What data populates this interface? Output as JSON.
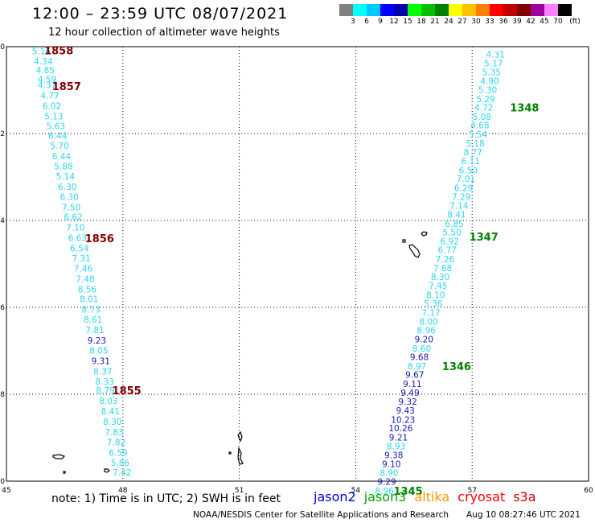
{
  "header": {
    "title": "12:00 – 23:59 UTC 08/07/2021",
    "subtitle": "12 hour collection of altimeter wave heights"
  },
  "legend": {
    "unit_label": "(ft)",
    "ticks": [
      "3",
      "6",
      "9",
      "12",
      "15",
      "18",
      "21",
      "24",
      "27",
      "30",
      "33",
      "36",
      "39",
      "42",
      "45",
      "70"
    ],
    "colors": [
      "#808080",
      "#00ffff",
      "#00c8ff",
      "#0000ff",
      "#0000aa",
      "#00ff00",
      "#00c000",
      "#008000",
      "#ffff00",
      "#ffc000",
      "#ff8000",
      "#ff0000",
      "#c00000",
      "#800000",
      "#a000a0",
      "#ff80ff",
      "#000000"
    ]
  },
  "map": {
    "lon_ticks": [
      "45",
      "48",
      "51",
      "54",
      "57",
      "60"
    ],
    "lat_ticks": [
      "0",
      "−2",
      "−4",
      "−6",
      "−8",
      "−10"
    ],
    "lon_range": [
      45,
      60
    ],
    "lat_range": [
      0,
      -10
    ],
    "grid": "dotted"
  },
  "tracks": [
    {
      "satellite": "cryosat",
      "color": "#2ad6f0",
      "dark_color": "#1a1ab0",
      "time_color": "#800000",
      "points": [
        {
          "lon": 45.9,
          "lat": -0.1,
          "value": "5.16",
          "dark": false
        },
        {
          "lon": 45.95,
          "lat": -0.33,
          "value": "4.34",
          "dark": false
        },
        {
          "lon": 46.0,
          "lat": -0.54,
          "value": "4.85",
          "dark": false
        },
        {
          "lon": 46.05,
          "lat": -0.75,
          "value": "4.59",
          "dark": false
        },
        {
          "lon": 46.05,
          "lat": -0.88,
          "value": "4.37",
          "dark": false
        },
        {
          "lon": 46.12,
          "lat": -1.12,
          "value": "4.77",
          "dark": false
        },
        {
          "lon": 46.17,
          "lat": -1.36,
          "value": "6.02",
          "dark": false
        },
        {
          "lon": 46.22,
          "lat": -1.6,
          "value": "5.13",
          "dark": false
        },
        {
          "lon": 46.27,
          "lat": -1.82,
          "value": "5.63",
          "dark": false
        },
        {
          "lon": 46.32,
          "lat": -2.05,
          "value": "6.44",
          "dark": false
        },
        {
          "lon": 46.37,
          "lat": -2.28,
          "value": "5.70",
          "dark": false
        },
        {
          "lon": 46.42,
          "lat": -2.52,
          "value": "6.44",
          "dark": false
        },
        {
          "lon": 46.47,
          "lat": -2.75,
          "value": "5.88",
          "dark": false
        },
        {
          "lon": 46.52,
          "lat": -2.98,
          "value": "5.14",
          "dark": false
        },
        {
          "lon": 46.57,
          "lat": -3.22,
          "value": "6.30",
          "dark": false
        },
        {
          "lon": 46.62,
          "lat": -3.45,
          "value": "6.30",
          "dark": false
        },
        {
          "lon": 46.67,
          "lat": -3.69,
          "value": "7.50",
          "dark": false
        },
        {
          "lon": 46.72,
          "lat": -3.92,
          "value": "6.62",
          "dark": false
        },
        {
          "lon": 46.78,
          "lat": -4.16,
          "value": "7.10",
          "dark": false
        },
        {
          "lon": 46.83,
          "lat": -4.4,
          "value": "6.63",
          "dark": false
        },
        {
          "lon": 46.88,
          "lat": -4.64,
          "value": "6.54",
          "dark": false
        },
        {
          "lon": 46.93,
          "lat": -4.87,
          "value": "7.31",
          "dark": false
        },
        {
          "lon": 46.98,
          "lat": -5.1,
          "value": "7.46",
          "dark": false
        },
        {
          "lon": 47.03,
          "lat": -5.34,
          "value": "7.48",
          "dark": false
        },
        {
          "lon": 47.08,
          "lat": -5.58,
          "value": "8.56",
          "dark": false
        },
        {
          "lon": 47.13,
          "lat": -5.81,
          "value": "8.01",
          "dark": false
        },
        {
          "lon": 47.18,
          "lat": -6.05,
          "value": "8.73",
          "dark": false
        },
        {
          "lon": 47.23,
          "lat": -6.28,
          "value": "8.61",
          "dark": false
        },
        {
          "lon": 47.28,
          "lat": -6.52,
          "value": "7.81",
          "dark": false
        },
        {
          "lon": 47.33,
          "lat": -6.76,
          "value": "9.23",
          "dark": true
        },
        {
          "lon": 47.38,
          "lat": -6.99,
          "value": "8.05",
          "dark": false
        },
        {
          "lon": 47.43,
          "lat": -7.23,
          "value": "9.31",
          "dark": true
        },
        {
          "lon": 47.48,
          "lat": -7.47,
          "value": "8.37",
          "dark": false
        },
        {
          "lon": 47.53,
          "lat": -7.7,
          "value": "8.33",
          "dark": false
        },
        {
          "lon": 47.55,
          "lat": -7.91,
          "value": "8.79",
          "dark": false
        },
        {
          "lon": 47.63,
          "lat": -8.15,
          "value": "8.03",
          "dark": false
        },
        {
          "lon": 47.68,
          "lat": -8.39,
          "value": "8.41",
          "dark": false
        },
        {
          "lon": 47.73,
          "lat": -8.63,
          "value": "8.30",
          "dark": false
        },
        {
          "lon": 47.78,
          "lat": -8.87,
          "value": "7.83",
          "dark": false
        },
        {
          "lon": 47.83,
          "lat": -9.1,
          "value": "7.82",
          "dark": false
        },
        {
          "lon": 47.88,
          "lat": -9.34,
          "value": "6.59",
          "dark": false
        },
        {
          "lon": 47.93,
          "lat": -9.57,
          "value": "5.86",
          "dark": false
        },
        {
          "lon": 47.98,
          "lat": -9.8,
          "value": "7.42",
          "dark": false
        }
      ],
      "times": [
        {
          "lon": 46.35,
          "lat": -0.08,
          "label": "1858"
        },
        {
          "lon": 46.55,
          "lat": -0.91,
          "label": "1857"
        },
        {
          "lon": 47.4,
          "lat": -4.41,
          "label": "1856"
        },
        {
          "lon": 48.1,
          "lat": -7.91,
          "label": "1855"
        }
      ]
    },
    {
      "satellite": "jason3",
      "color": "#2ad6f0",
      "dark_color": "#1a1ab0",
      "time_color": "#008000",
      "points": [
        {
          "lon": 57.6,
          "lat": -0.18,
          "value": "4.31",
          "dark": false
        },
        {
          "lon": 57.55,
          "lat": -0.38,
          "value": "5.17",
          "dark": false
        },
        {
          "lon": 57.5,
          "lat": -0.58,
          "value": "5.35",
          "dark": false
        },
        {
          "lon": 57.45,
          "lat": -0.79,
          "value": "4.90",
          "dark": false
        },
        {
          "lon": 57.4,
          "lat": -0.99,
          "value": "5.30",
          "dark": false
        },
        {
          "lon": 57.35,
          "lat": -1.2,
          "value": "5.29",
          "dark": false
        },
        {
          "lon": 57.3,
          "lat": -1.4,
          "value": "4.72",
          "dark": false
        },
        {
          "lon": 57.25,
          "lat": -1.61,
          "value": "5.08",
          "dark": false
        },
        {
          "lon": 57.2,
          "lat": -1.81,
          "value": "4.68",
          "dark": false
        },
        {
          "lon": 57.15,
          "lat": -2.02,
          "value": "5.54",
          "dark": false
        },
        {
          "lon": 57.08,
          "lat": -2.22,
          "value": "5.18",
          "dark": false
        },
        {
          "lon": 57.02,
          "lat": -2.43,
          "value": "8.77",
          "dark": false
        },
        {
          "lon": 56.96,
          "lat": -2.63,
          "value": "6.11",
          "dark": false
        },
        {
          "lon": 56.9,
          "lat": -2.84,
          "value": "6.50",
          "dark": false
        },
        {
          "lon": 56.84,
          "lat": -3.04,
          "value": "7.01",
          "dark": false
        },
        {
          "lon": 56.78,
          "lat": -3.25,
          "value": "6.29",
          "dark": false
        },
        {
          "lon": 56.72,
          "lat": -3.45,
          "value": "7.29",
          "dark": false
        },
        {
          "lon": 56.66,
          "lat": -3.66,
          "value": "7.14",
          "dark": false
        },
        {
          "lon": 56.6,
          "lat": -3.86,
          "value": "8.41",
          "dark": false
        },
        {
          "lon": 56.54,
          "lat": -4.07,
          "value": "6.85",
          "dark": false
        },
        {
          "lon": 56.48,
          "lat": -4.27,
          "value": "5.50",
          "dark": false
        },
        {
          "lon": 56.42,
          "lat": -4.48,
          "value": "6.92",
          "dark": false
        },
        {
          "lon": 56.36,
          "lat": -4.68,
          "value": "6.77",
          "dark": false
        },
        {
          "lon": 56.3,
          "lat": -4.89,
          "value": "7.26",
          "dark": false
        },
        {
          "lon": 56.24,
          "lat": -5.09,
          "value": "7.68",
          "dark": false
        },
        {
          "lon": 56.18,
          "lat": -5.3,
          "value": "8.30",
          "dark": false
        },
        {
          "lon": 56.12,
          "lat": -5.5,
          "value": "7.45",
          "dark": false
        },
        {
          "lon": 56.06,
          "lat": -5.71,
          "value": "8.10",
          "dark": false
        },
        {
          "lon": 56.0,
          "lat": -5.91,
          "value": "5.36",
          "dark": false
        },
        {
          "lon": 55.94,
          "lat": -6.12,
          "value": "7.17",
          "dark": false
        },
        {
          "lon": 55.88,
          "lat": -6.32,
          "value": "8.00",
          "dark": false
        },
        {
          "lon": 55.82,
          "lat": -6.53,
          "value": "8.96",
          "dark": false
        },
        {
          "lon": 55.76,
          "lat": -6.73,
          "value": "9.20",
          "dark": true
        },
        {
          "lon": 55.7,
          "lat": -6.94,
          "value": "8.60",
          "dark": false
        },
        {
          "lon": 55.64,
          "lat": -7.14,
          "value": "9.68",
          "dark": true
        },
        {
          "lon": 55.58,
          "lat": -7.35,
          "value": "8.97",
          "dark": false
        },
        {
          "lon": 55.52,
          "lat": -7.55,
          "value": "9.67",
          "dark": true
        },
        {
          "lon": 55.46,
          "lat": -7.76,
          "value": "9.11",
          "dark": true
        },
        {
          "lon": 55.4,
          "lat": -7.96,
          "value": "9.49",
          "dark": true
        },
        {
          "lon": 55.34,
          "lat": -8.17,
          "value": "9.32",
          "dark": true
        },
        {
          "lon": 55.28,
          "lat": -8.37,
          "value": "9.43",
          "dark": true
        },
        {
          "lon": 55.22,
          "lat": -8.58,
          "value": "10.23",
          "dark": true
        },
        {
          "lon": 55.16,
          "lat": -8.78,
          "value": "10.26",
          "dark": true
        },
        {
          "lon": 55.1,
          "lat": -8.99,
          "value": "9.21",
          "dark": true
        },
        {
          "lon": 55.04,
          "lat": -9.19,
          "value": "8.93",
          "dark": false
        },
        {
          "lon": 54.98,
          "lat": -9.4,
          "value": "9.38",
          "dark": true
        },
        {
          "lon": 54.92,
          "lat": -9.6,
          "value": "9.10",
          "dark": true
        },
        {
          "lon": 54.86,
          "lat": -9.81,
          "value": "8.90",
          "dark": false
        },
        {
          "lon": 54.8,
          "lat": -10.01,
          "value": "9.29",
          "dark": true
        },
        {
          "lon": 54.74,
          "lat": -10.22,
          "value": "8.96",
          "dark": false
        }
      ],
      "times": [
        {
          "lon": 58.35,
          "lat": -1.4,
          "label": "1348"
        },
        {
          "lon": 57.3,
          "lat": -4.37,
          "label": "1347"
        },
        {
          "lon": 56.6,
          "lat": -7.35,
          "label": "1346"
        },
        {
          "lon": 55.35,
          "lat": -10.22,
          "label": "1345"
        }
      ]
    }
  ],
  "footer": {
    "note": "note: 1) Time is in UTC; 2) SWH is in feet",
    "satellites": [
      {
        "name": "jason2",
        "color": "#0000cc"
      },
      {
        "name": "jason3",
        "color": "#00a000"
      },
      {
        "name": "altika",
        "color": "#ff9900"
      },
      {
        "name": "cryosat",
        "color": "#ff0000"
      },
      {
        "name": "s3a",
        "color": "#cc0000"
      }
    ],
    "credit": "NOAA/NESDIS Center for Satellite Applications and Research",
    "timestamp": "Aug 10 08:27:46 UTC 2021"
  }
}
